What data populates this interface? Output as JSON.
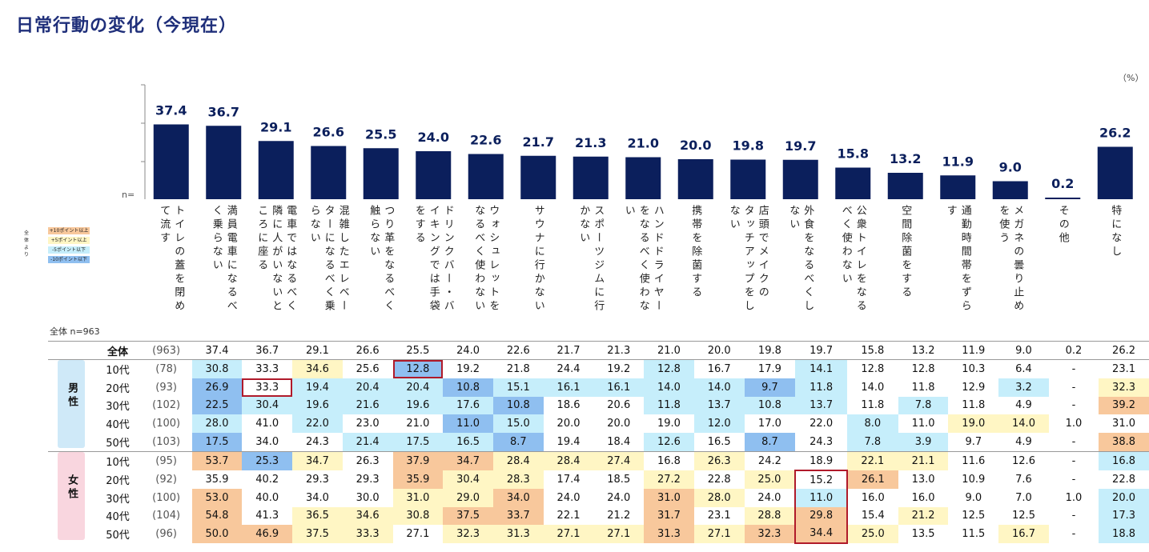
{
  "title": "日常行動の変化（今現在）",
  "unit_label": "（%）",
  "n_label": "n=",
  "total_n_label": "全体 n=963",
  "legend": {
    "header": "全体より",
    "items": [
      {
        "label": "+10ポイント以上",
        "color": "#f8c89c"
      },
      {
        "label": "+5ポイント以上",
        "color": "#fff6c4"
      },
      {
        "label": "-5ポイント以下",
        "color": "#c6eefb"
      },
      {
        "label": "-10ポイント以下",
        "color": "#8fbff0"
      }
    ]
  },
  "colors": {
    "bar": "#0b1f5c",
    "title": "#1f2f7a",
    "highlight": "#b01a2a"
  },
  "chart_data": {
    "type": "bar",
    "title": "日常行動の変化（今現在）",
    "ylabel": "%",
    "ylim": [
      0,
      45
    ],
    "categories": [
      "トイレの蓋を閉めて流す",
      "満員電車になるべく乗らない",
      "電車ではなるべく隣に人がいないところに座る",
      "混雑したエレベーターになるべく乗らない",
      "つり革をなるべく触らない",
      "ドリンクバー・バイキングでは手袋をする",
      "ウォシュレットをなるべく使わない",
      "サウナに行かない",
      "スポーツジムに行かない",
      "ハンドドライヤーをなるべく使わない",
      "携帯を除菌する",
      "店頭でメイクのタッチアップをしない",
      "外食をなるべくしない",
      "公衆トイレをなるべく使わない",
      "空間除菌をする",
      "通勤時間帯をずらす",
      "メガネの曇り止めを使う",
      "その他",
      "特になし"
    ],
    "label_columns": [
      [
        "トイレの蓋を閉め",
        "て流す"
      ],
      [
        "満員電車になるべ",
        "く乗らない"
      ],
      [
        "電車ではなるべく",
        "隣に人がいないと",
        "ころに座る"
      ],
      [
        "混雑したエレベー",
        "ターになるべく乗",
        "らない"
      ],
      [
        "つり革をなるべく",
        "触らない"
      ],
      [
        "ドリンクバー・バ",
        "イキングでは手袋",
        "をする"
      ],
      [
        "ウォシュレットを",
        "なるべく使わない"
      ],
      [
        "サウナに行かない"
      ],
      [
        "スポーツジムに行",
        "かない"
      ],
      [
        "ハンドドライヤー",
        "をなるべく使わな",
        "い"
      ],
      [
        "携帯を除菌する"
      ],
      [
        "店頭でメイクの",
        "タッチアップをし",
        "ない"
      ],
      [
        "外食をなるべくし",
        "ない"
      ],
      [
        "公衆トイレをなる",
        "べく使わない"
      ],
      [
        "空間除菌をする"
      ],
      [
        "通勤時間帯をずら",
        "す"
      ],
      [
        "メガネの曇り止め",
        "を使う"
      ],
      [
        "その他"
      ],
      [
        "特になし"
      ]
    ],
    "values": [
      "37.4",
      "36.7",
      "29.1",
      "26.6",
      "25.5",
      "24.0",
      "22.6",
      "21.7",
      "21.3",
      "21.0",
      "20.0",
      "19.8",
      "19.7",
      "15.8",
      "13.2",
      "11.9",
      "9.0",
      "0.2",
      "26.2"
    ],
    "table": {
      "total": {
        "label": "全体",
        "n": "(963)",
        "values": [
          "37.4",
          "36.7",
          "29.1",
          "26.6",
          "25.5",
          "24.0",
          "22.6",
          "21.7",
          "21.3",
          "21.0",
          "20.0",
          "19.8",
          "19.7",
          "15.8",
          "13.2",
          "11.9",
          "9.0",
          "0.2",
          "26.2"
        ]
      },
      "groups": [
        {
          "gender": "男性",
          "rows": [
            {
              "age": "10代",
              "n": "(78)",
              "values": [
                "30.8",
                "33.3",
                "34.6",
                "25.6",
                "12.8",
                "19.2",
                "21.8",
                "24.4",
                "19.2",
                "12.8",
                "16.7",
                "17.9",
                "14.1",
                "12.8",
                "12.8",
                "10.3",
                "6.4",
                "-",
                "23.1"
              ]
            },
            {
              "age": "20代",
              "n": "(93)",
              "values": [
                "26.9",
                "33.3",
                "19.4",
                "20.4",
                "20.4",
                "10.8",
                "15.1",
                "16.1",
                "16.1",
                "14.0",
                "14.0",
                "9.7",
                "11.8",
                "14.0",
                "11.8",
                "12.9",
                "3.2",
                "-",
                "32.3"
              ]
            },
            {
              "age": "30代",
              "n": "(102)",
              "values": [
                "22.5",
                "30.4",
                "19.6",
                "21.6",
                "19.6",
                "17.6",
                "10.8",
                "18.6",
                "20.6",
                "11.8",
                "13.7",
                "10.8",
                "13.7",
                "11.8",
                "7.8",
                "11.8",
                "4.9",
                "-",
                "39.2"
              ]
            },
            {
              "age": "40代",
              "n": "(100)",
              "values": [
                "28.0",
                "41.0",
                "22.0",
                "23.0",
                "21.0",
                "11.0",
                "15.0",
                "20.0",
                "20.0",
                "19.0",
                "12.0",
                "17.0",
                "22.0",
                "8.0",
                "11.0",
                "19.0",
                "14.0",
                "1.0",
                "31.0"
              ]
            },
            {
              "age": "50代",
              "n": "(103)",
              "values": [
                "17.5",
                "34.0",
                "24.3",
                "21.4",
                "17.5",
                "16.5",
                "8.7",
                "19.4",
                "18.4",
                "12.6",
                "16.5",
                "8.7",
                "24.3",
                "7.8",
                "3.9",
                "9.7",
                "4.9",
                "-",
                "38.8"
              ]
            }
          ]
        },
        {
          "gender": "女性",
          "rows": [
            {
              "age": "10代",
              "n": "(95)",
              "values": [
                "53.7",
                "25.3",
                "34.7",
                "26.3",
                "37.9",
                "34.7",
                "28.4",
                "28.4",
                "27.4",
                "16.8",
                "26.3",
                "24.2",
                "18.9",
                "22.1",
                "21.1",
                "11.6",
                "12.6",
                "-",
                "16.8"
              ]
            },
            {
              "age": "20代",
              "n": "(92)",
              "values": [
                "35.9",
                "40.2",
                "29.3",
                "29.3",
                "35.9",
                "30.4",
                "28.3",
                "17.4",
                "18.5",
                "27.2",
                "22.8",
                "25.0",
                "15.2",
                "26.1",
                "13.0",
                "10.9",
                "7.6",
                "-",
                "22.8"
              ]
            },
            {
              "age": "30代",
              "n": "(100)",
              "values": [
                "53.0",
                "40.0",
                "34.0",
                "30.0",
                "31.0",
                "29.0",
                "34.0",
                "24.0",
                "24.0",
                "31.0",
                "28.0",
                "24.0",
                "11.0",
                "16.0",
                "16.0",
                "9.0",
                "7.0",
                "1.0",
                "20.0"
              ]
            },
            {
              "age": "40代",
              "n": "(104)",
              "values": [
                "54.8",
                "41.3",
                "36.5",
                "34.6",
                "30.8",
                "37.5",
                "33.7",
                "22.1",
                "21.2",
                "31.7",
                "23.1",
                "28.8",
                "29.8",
                "15.4",
                "21.2",
                "12.5",
                "12.5",
                "-",
                "17.3"
              ]
            },
            {
              "age": "50代",
              "n": "(96)",
              "values": [
                "50.0",
                "46.9",
                "37.5",
                "33.3",
                "27.1",
                "32.3",
                "31.3",
                "27.1",
                "27.1",
                "31.3",
                "27.1",
                "32.3",
                "34.4",
                "25.0",
                "13.5",
                "11.5",
                "16.7",
                "-",
                "18.8"
              ]
            }
          ]
        }
      ]
    }
  }
}
